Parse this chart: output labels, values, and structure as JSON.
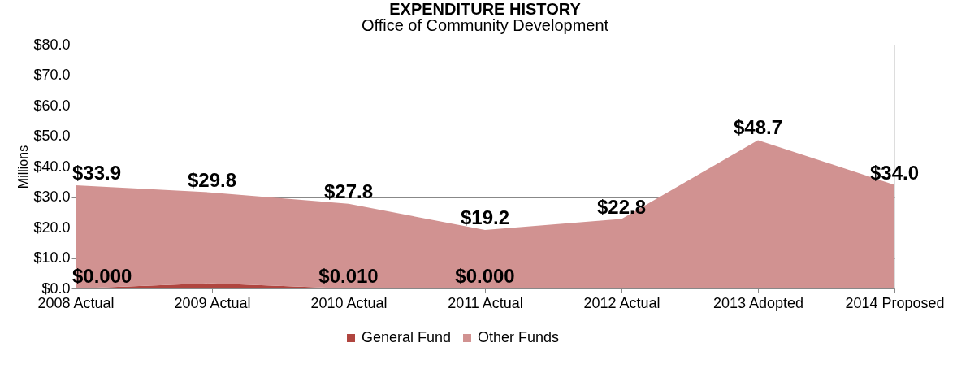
{
  "chart_data": {
    "type": "area",
    "title": "EXPENDITURE HISTORY",
    "subtitle": "Office of Community Development",
    "ylabel": "Millions",
    "categories": [
      "2008 Actual",
      "2009 Actual",
      "2010 Actual",
      "2011 Actual",
      "2012 Actual",
      "2013 Adopted",
      "2014 Proposed"
    ],
    "stacked": true,
    "series": [
      {
        "name": "General Fund",
        "color": "#b0453f",
        "values": [
          0.0,
          1.7,
          0.01,
          0.0,
          0.0,
          0.0,
          0.0
        ],
        "value_labels": [
          "$0.000",
          null,
          "$0.010",
          "$0.000",
          null,
          null,
          null
        ]
      },
      {
        "name": "Other Funds",
        "color": "#d19291",
        "values": [
          33.9,
          29.8,
          27.8,
          19.2,
          22.8,
          48.7,
          34.0
        ],
        "value_labels": [
          "$33.9",
          "$29.8",
          "$27.8",
          "$19.2",
          "$22.8",
          "$48.7",
          "$34.0"
        ]
      }
    ],
    "ylim": [
      0,
      80
    ],
    "yticks": [
      {
        "value": 0,
        "label": "$0.0"
      },
      {
        "value": 10,
        "label": "$10.0"
      },
      {
        "value": 20,
        "label": "$20.0"
      },
      {
        "value": 30,
        "label": "$30.0"
      },
      {
        "value": 40,
        "label": "$40.0"
      },
      {
        "value": 50,
        "label": "$50.0"
      },
      {
        "value": 60,
        "label": "$60.0"
      },
      {
        "value": 70,
        "label": "$70.0"
      },
      {
        "value": 80,
        "label": "$80.0"
      }
    ],
    "grid": "y",
    "legend": "bottom"
  }
}
